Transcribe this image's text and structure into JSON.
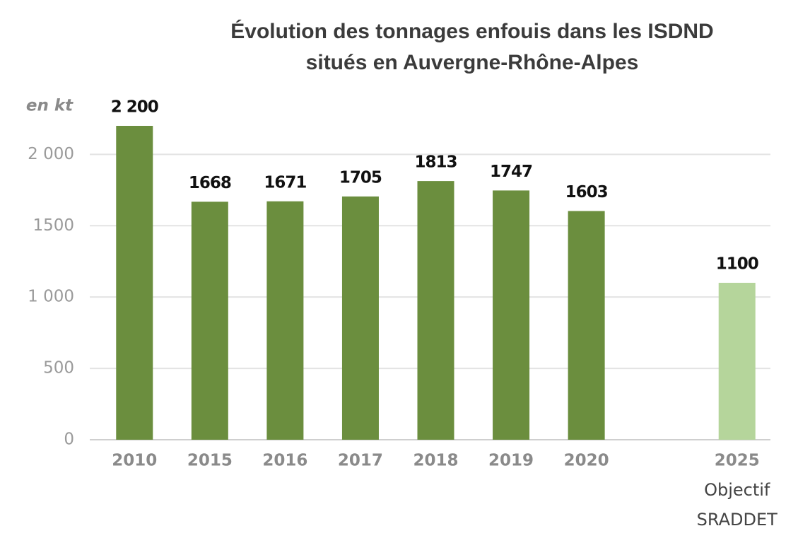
{
  "chart_data": {
    "type": "bar",
    "title": [
      "Évolution des tonnages enfouis dans les ISDND",
      "situés en Auvergne-Rhône-Alpes"
    ],
    "y_label": "en kt",
    "categories": [
      "2010",
      "2015",
      "2016",
      "2017",
      "2018",
      "2019",
      "2020",
      null,
      [
        "2025",
        "Objectif",
        "SRADDET"
      ]
    ],
    "values": [
      2200,
      1668,
      1671,
      1705,
      1813,
      1747,
      1603,
      null,
      1100
    ],
    "value_labels": [
      "2 200",
      "1668",
      "1671",
      "1705",
      "1813",
      "1747",
      "1603",
      null,
      "1100"
    ],
    "colors": [
      "#6b8e3e",
      "#6b8e3e",
      "#6b8e3e",
      "#6b8e3e",
      "#6b8e3e",
      "#6b8e3e",
      "#6b8e3e",
      null,
      "#b5d59b"
    ],
    "ylim": [
      0,
      2200
    ],
    "yticks": [
      0,
      500,
      {
        "value": 1000,
        "label": "1 000"
      },
      1500,
      {
        "value": 2000,
        "label": "2 000"
      }
    ],
    "grid": true
  }
}
